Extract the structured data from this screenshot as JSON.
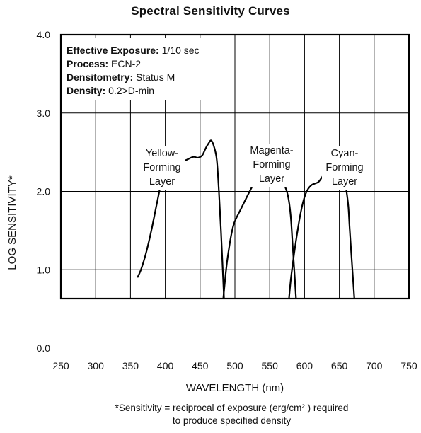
{
  "chart_data": {
    "type": "line",
    "title": "Spectral Sensitivity Curves",
    "xlabel": "WAVELENGTH (nm)",
    "ylabel": "LOG SENSITIVITY*",
    "xlim": [
      250,
      750
    ],
    "ylim": [
      0.0,
      4.0
    ],
    "x_ticks": [
      "250",
      "300",
      "350",
      "400",
      "450",
      "500",
      "550",
      "600",
      "650",
      "700",
      "750"
    ],
    "y_ticks": [
      "0.0",
      "1.0",
      "2.0",
      "3.0",
      "4.0"
    ],
    "grid": true,
    "info": [
      {
        "key": "Effective Exposure:",
        "value": " 1/10 sec"
      },
      {
        "key": "Process:",
        "value": " ECN-2"
      },
      {
        "key": "Densitometry:",
        "value": " Status M"
      },
      {
        "key": "Density:",
        "value": " 0.2>D-min"
      }
    ],
    "series": [
      {
        "name": "Yellow-Forming Layer",
        "label_lines": [
          "Yellow-",
          "Forming",
          "Layer"
        ],
        "x": [
          360,
          365,
          372,
          380,
          388,
          395,
          400,
          405,
          410,
          415,
          420,
          430,
          440,
          447,
          453,
          458,
          462,
          466,
          470,
          474,
          477,
          480,
          483,
          486
        ],
        "y": [
          0.9,
          1.0,
          1.2,
          1.5,
          1.85,
          2.15,
          2.32,
          2.36,
          2.38,
          2.36,
          2.37,
          2.4,
          2.44,
          2.43,
          2.46,
          2.55,
          2.61,
          2.65,
          2.57,
          2.4,
          2.0,
          1.5,
          0.9,
          0.3
        ]
      },
      {
        "name": "Magenta-Forming Layer",
        "label_lines": [
          "Magenta-",
          "Forming",
          "Layer"
        ],
        "x": [
          477,
          480,
          484,
          488,
          492,
          496,
          500,
          510,
          520,
          530,
          540,
          547,
          550,
          553,
          557,
          562,
          570,
          576,
          580,
          583,
          586,
          588,
          590,
          592
        ],
        "y": [
          0.0,
          0.3,
          0.7,
          1.05,
          1.3,
          1.5,
          1.62,
          1.8,
          1.98,
          2.15,
          2.32,
          2.42,
          2.45,
          2.4,
          2.3,
          2.2,
          2.1,
          1.95,
          1.7,
          1.3,
          0.9,
          0.6,
          0.3,
          0.0
        ]
      },
      {
        "name": "Cyan-Forming Layer",
        "label_lines": [
          "Cyan-",
          "Forming",
          "Layer"
        ],
        "x": [
          572,
          575,
          580,
          585,
          590,
          595,
          600,
          605,
          610,
          615,
          620,
          625,
          630,
          635,
          640,
          645,
          650,
          655,
          660,
          663,
          665,
          668,
          671,
          674,
          676
        ],
        "y": [
          0.0,
          0.35,
          0.85,
          1.2,
          1.5,
          1.75,
          1.93,
          2.03,
          2.08,
          2.1,
          2.12,
          2.18,
          2.25,
          2.3,
          2.36,
          2.4,
          2.38,
          2.3,
          2.02,
          1.8,
          1.5,
          1.1,
          0.7,
          0.3,
          0.0
        ]
      }
    ]
  },
  "footnote": {
    "line1": "*Sensitivity = reciprocal of exposure (erg/cm² ) required",
    "line2": "to produce specified density"
  }
}
